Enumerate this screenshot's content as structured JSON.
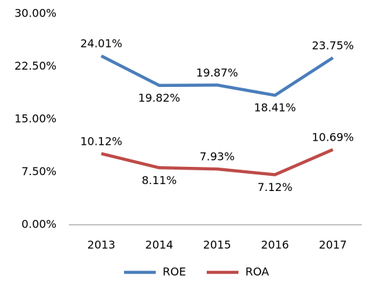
{
  "chart_data": {
    "type": "line",
    "categories": [
      "2013",
      "2014",
      "2015",
      "2016",
      "2017"
    ],
    "series": [
      {
        "name": "ROE",
        "color": "#4a7ebb",
        "values": [
          24.01,
          19.82,
          19.87,
          18.41,
          23.75
        ],
        "value_labels": [
          "24.01%",
          "19.82%",
          "19.87%",
          "18.41%",
          "23.75%"
        ]
      },
      {
        "name": "ROA",
        "color": "#be4b48",
        "values": [
          10.12,
          8.11,
          7.93,
          7.12,
          10.69
        ],
        "value_labels": [
          "10.12%",
          "8.11%",
          "7.93%",
          "7.12%",
          "10.69%"
        ]
      }
    ],
    "ylim": [
      0,
      30
    ],
    "yticks": [
      {
        "value": 0,
        "label": "0.00%"
      },
      {
        "value": 7.5,
        "label": "7.50%"
      },
      {
        "value": 15,
        "label": "15.00%"
      },
      {
        "value": 22.5,
        "label": "22.50%"
      },
      {
        "value": 30,
        "label": "30.00%"
      }
    ],
    "grid": false,
    "legend": "bottom"
  }
}
